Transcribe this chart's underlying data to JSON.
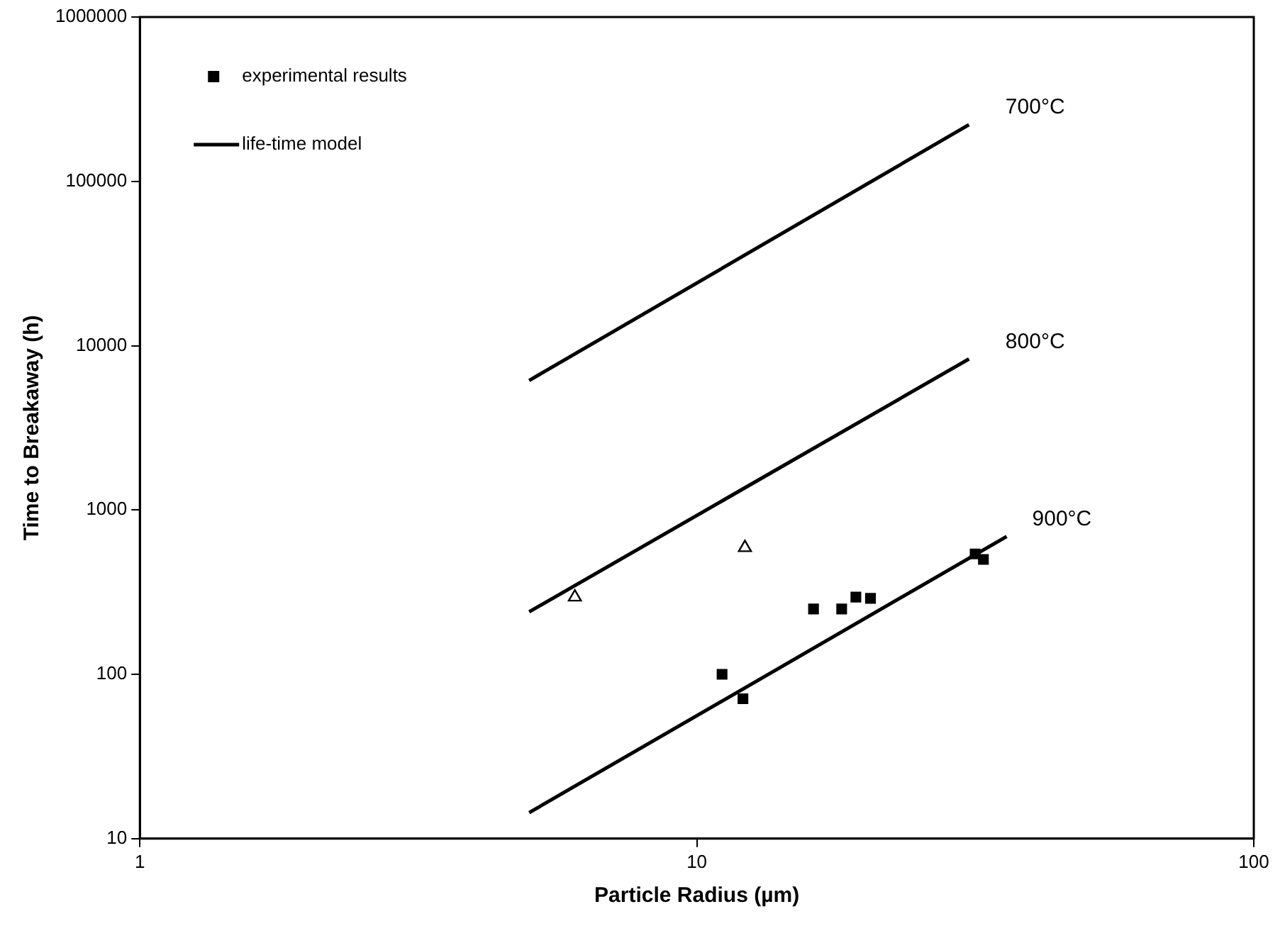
{
  "chart_data": {
    "type": "scatter",
    "xlabel": "Particle Radius (µm)",
    "ylabel": "Time to Breakaway (h)",
    "log": "xy",
    "xlim": [
      1,
      100
    ],
    "xticks": [
      1,
      10,
      100
    ],
    "ylim": [
      10,
      1000000
    ],
    "yticks": [
      10,
      100,
      1000,
      10000,
      100000,
      1000000
    ],
    "grid": false,
    "legend": "top left",
    "series": [
      {
        "name": "experimental results",
        "marker": "square",
        "color": "#000000",
        "x": [
          11.1,
          12.1,
          16.2,
          18.2,
          19.3,
          20.5,
          31.6,
          32.7
        ],
        "values": [
          100,
          71,
          250,
          250,
          295,
          290,
          540,
          500
        ]
      },
      {
        "marker": "triangle",
        "color": "#000000",
        "x": [
          6.04,
          12.2
        ],
        "values": [
          295,
          590
        ]
      },
      {
        "name": "life-time model",
        "type": "line",
        "marker": "none",
        "color": "#000000",
        "x": [
          5,
          30.8
        ],
        "values": [
          6140,
          221000
        ]
      },
      {
        "type": "line",
        "marker": "none",
        "color": "#000000",
        "x": [
          5,
          30.8
        ],
        "values": [
          240,
          8300
        ]
      },
      {
        "type": "line",
        "marker": "none",
        "color": "#000000",
        "x": [
          5,
          36
        ],
        "values": [
          14.4,
          690
        ]
      }
    ],
    "annotations": [
      "700°C",
      "800°C",
      "900°C"
    ]
  }
}
